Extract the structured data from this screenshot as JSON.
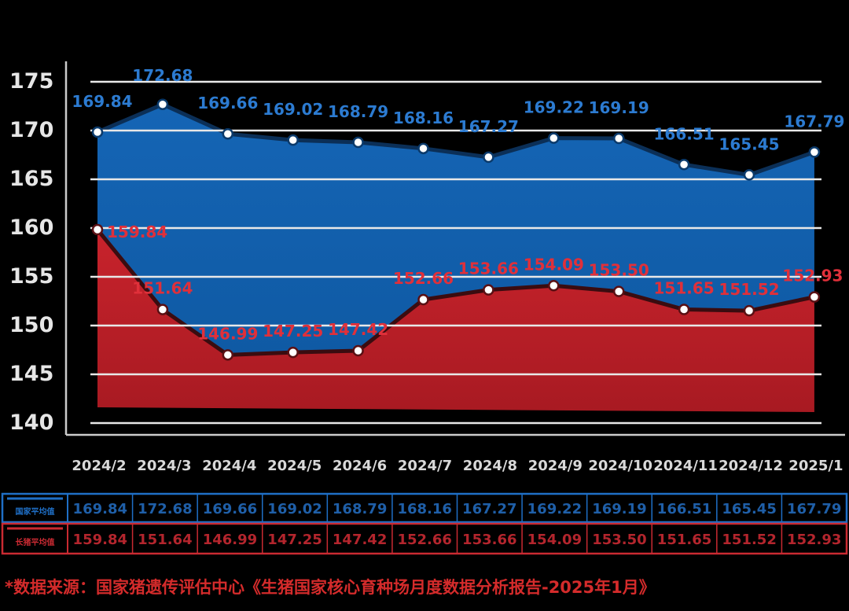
{
  "chart_data": {
    "type": "area",
    "categories": [
      "2024/2",
      "2024/3",
      "2024/4",
      "2024/5",
      "2024/6",
      "2024/7",
      "2024/8",
      "2024/9",
      "2024/10",
      "2024/11",
      "2024/12",
      "2025/1"
    ],
    "ylim": [
      140,
      175
    ],
    "yticks": [
      "175",
      "170",
      "165",
      "160",
      "155",
      "150",
      "145",
      "140"
    ],
    "grid": true,
    "series": [
      {
        "name": "国家平均值",
        "color": "#1565b5",
        "values": [
          169.84,
          172.68,
          169.66,
          169.02,
          168.79,
          168.16,
          167.27,
          169.22,
          169.19,
          166.51,
          165.45,
          167.79
        ],
        "labels": [
          "169.84",
          "172.68",
          "169.66",
          "169.02",
          "168.79",
          "168.16",
          "167.27",
          "169.22",
          "169.19",
          "166.51",
          "165.45",
          "167.79"
        ]
      },
      {
        "name": "长猪平均值",
        "color": "#c8232c",
        "values": [
          159.84,
          151.64,
          146.99,
          147.25,
          147.42,
          152.66,
          153.66,
          154.09,
          153.5,
          151.65,
          151.52,
          152.93
        ],
        "labels": [
          "159.84",
          "151.64",
          "146.99",
          "147.25",
          "147.42",
          "152.66",
          "153.66",
          "154.09",
          "153.50",
          "151.65",
          "151.52",
          "152.93"
        ]
      }
    ]
  },
  "table": {
    "rows": [
      {
        "name": "国家平均值",
        "values": [
          "169.84",
          "172.68",
          "169.66",
          "169.02",
          "168.79",
          "168.16",
          "167.27",
          "169.22",
          "169.19",
          "166.51",
          "165.45",
          "167.79"
        ]
      },
      {
        "name": "长猪平均值",
        "values": [
          "159.84",
          "151.64",
          "146.99",
          "147.25",
          "147.42",
          "152.66",
          "153.66",
          "154.09",
          "153.50",
          "151.65",
          "151.52",
          "152.93"
        ]
      }
    ]
  },
  "source_note": "*数据来源：国家猪遗传评估中心《生猪国家核心育种场月度数据分析报告-2025年1月》"
}
